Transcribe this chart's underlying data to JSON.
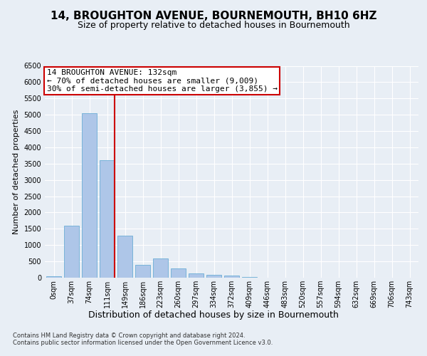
{
  "title": "14, BROUGHTON AVENUE, BOURNEMOUTH, BH10 6HZ",
  "subtitle": "Size of property relative to detached houses in Bournemouth",
  "xlabel": "Distribution of detached houses by size in Bournemouth",
  "ylabel": "Number of detached properties",
  "footer_line1": "Contains HM Land Registry data © Crown copyright and database right 2024.",
  "footer_line2": "Contains public sector information licensed under the Open Government Licence v3.0.",
  "bar_values": [
    50,
    1600,
    5050,
    3600,
    1300,
    400,
    600,
    290,
    130,
    90,
    60,
    20,
    10,
    5,
    5,
    5,
    5,
    5,
    5,
    5
  ],
  "categories": [
    "0sqm",
    "37sqm",
    "74sqm",
    "111sqm",
    "149sqm",
    "186sqm",
    "223sqm",
    "260sqm",
    "297sqm",
    "334sqm",
    "372sqm",
    "409sqm",
    "446sqm",
    "483sqm",
    "520sqm",
    "557sqm",
    "594sqm",
    "632sqm",
    "669sqm",
    "706sqm",
    "743sqm"
  ],
  "bar_color": "#aec6e8",
  "bar_edge_color": "#6badd6",
  "vline_color": "#cc0000",
  "vline_index": 3,
  "annotation_box_text": "14 BROUGHTON AVENUE: 132sqm\n← 70% of detached houses are smaller (9,009)\n30% of semi-detached houses are larger (3,855) →",
  "annotation_fontsize": 8,
  "annotation_box_edge_color": "#cc0000",
  "ylim": [
    0,
    6500
  ],
  "yticks": [
    0,
    500,
    1000,
    1500,
    2000,
    2500,
    3000,
    3500,
    4000,
    4500,
    5000,
    5500,
    6000,
    6500
  ],
  "background_color": "#e8eef5",
  "plot_background_color": "#e8eef5",
  "grid_color": "#ffffff",
  "title_fontsize": 11,
  "subtitle_fontsize": 9,
  "xlabel_fontsize": 9,
  "ylabel_fontsize": 8,
  "tick_fontsize": 7,
  "footer_fontsize": 6
}
